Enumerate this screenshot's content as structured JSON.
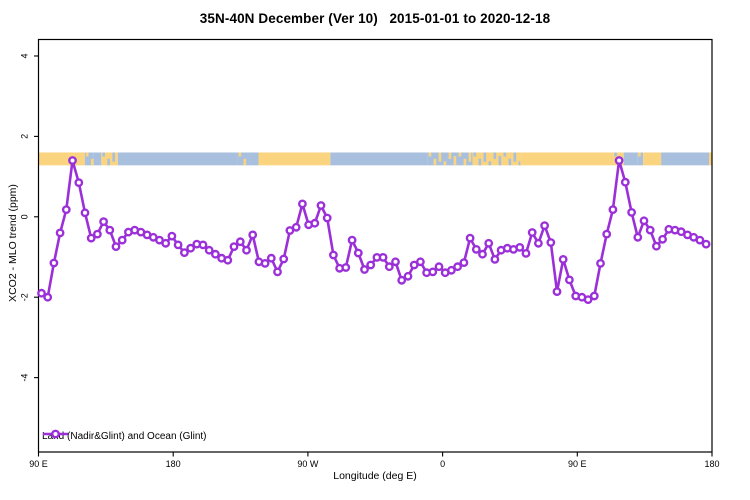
{
  "page": {
    "background": "#ffffff",
    "text_color": "#000000"
  },
  "chart_data": {
    "type": "line",
    "title": "35N-40N December (Ver 10)   2015-01-01 to 2020-12-18",
    "xlabel": "Longitude (deg E)",
    "ylabel": "XCO2 - MLO trend (ppm)",
    "xlim": [
      90,
      540
    ],
    "ylim": [
      -5.85,
      4.41
    ],
    "grid": false,
    "x_ticks": [
      {
        "value": 90,
        "label": "90 E"
      },
      {
        "value": 180,
        "label": "180"
      },
      {
        "value": 270,
        "label": "90 W"
      },
      {
        "value": 360,
        "label": "0"
      },
      {
        "value": 450,
        "label": "90 E"
      },
      {
        "value": 540,
        "label": "180"
      }
    ],
    "y_ticks": [
      {
        "value": 4,
        "label": "4"
      },
      {
        "value": 2,
        "label": "2"
      },
      {
        "value": 0,
        "label": "0"
      },
      {
        "value": -2,
        "label": "-2"
      },
      {
        "value": -4,
        "label": "-4"
      }
    ],
    "legend": {
      "label": "Land (Nadir&Glint) and Ocean (Glint)",
      "position": "bottom-left-inside",
      "marker": "open-circle-on-line"
    },
    "series": [
      {
        "name": "Land (Nadir&Glint) and Ocean (Glint)",
        "color": "#9B30D9",
        "marker": "open-circle",
        "x_start": 92,
        "x_step": 4.15,
        "values": [
          -1.9,
          -2.0,
          -1.15,
          -0.4,
          0.18,
          1.4,
          0.85,
          0.1,
          -0.53,
          -0.43,
          -0.12,
          -0.33,
          -0.74,
          -0.58,
          -0.38,
          -0.33,
          -0.38,
          -0.45,
          -0.51,
          -0.58,
          -0.66,
          -0.48,
          -0.7,
          -0.89,
          -0.78,
          -0.68,
          -0.7,
          -0.83,
          -0.93,
          -1.03,
          -1.08,
          -0.74,
          -0.62,
          -0.83,
          -0.45,
          -1.12,
          -1.16,
          -1.03,
          -1.37,
          -1.05,
          -0.34,
          -0.26,
          0.32,
          -0.2,
          -0.16,
          0.28,
          -0.03,
          -0.95,
          -1.28,
          -1.26,
          -0.58,
          -0.9,
          -1.31,
          -1.2,
          -1.01,
          -1.01,
          -1.24,
          -1.12,
          -1.58,
          -1.48,
          -1.2,
          -1.12,
          -1.39,
          -1.37,
          -1.24,
          -1.39,
          -1.33,
          -1.24,
          -1.14,
          -0.53,
          -0.81,
          -0.93,
          -0.66,
          -1.06,
          -0.83,
          -0.78,
          -0.81,
          -0.76,
          -0.91,
          -0.39,
          -0.66,
          -0.22,
          -0.64,
          -1.86,
          -1.06,
          -1.57,
          -1.97,
          -2.0,
          -2.06,
          -1.97,
          -1.16,
          -0.43,
          0.18,
          1.4,
          0.86,
          0.11,
          -0.51,
          -0.1,
          -0.33,
          -0.73,
          -0.56,
          -0.31,
          -0.33,
          -0.37,
          -0.45,
          -0.51,
          -0.58,
          -0.68
        ]
      }
    ],
    "surface_type_band": {
      "y_from": 1.28,
      "y_to": 1.6,
      "land_color": "#FAD47F",
      "ocean_color": "#A8C0DD",
      "segments": [
        {
          "from": 90,
          "to": 121,
          "type": "land"
        },
        {
          "from": 121,
          "to": 127,
          "type": "mixed",
          "bias": "ocean"
        },
        {
          "from": 127,
          "to": 132,
          "type": "ocean"
        },
        {
          "from": 132,
          "to": 143,
          "type": "mixed",
          "bias": "land"
        },
        {
          "from": 143,
          "to": 223,
          "type": "ocean"
        },
        {
          "from": 223,
          "to": 231,
          "type": "mixed",
          "bias": "ocean"
        },
        {
          "from": 231,
          "to": 237,
          "type": "ocean"
        },
        {
          "from": 237,
          "to": 285,
          "type": "land"
        },
        {
          "from": 285,
          "to": 350,
          "type": "ocean"
        },
        {
          "from": 350,
          "to": 380,
          "type": "mixed",
          "bias": "ocean"
        },
        {
          "from": 380,
          "to": 412,
          "type": "mixed",
          "bias": "land"
        },
        {
          "from": 412,
          "to": 474,
          "type": "land"
        },
        {
          "from": 474,
          "to": 481,
          "type": "mixed",
          "bias": "land"
        },
        {
          "from": 481,
          "to": 490,
          "type": "ocean"
        },
        {
          "from": 490,
          "to": 494,
          "type": "mixed",
          "bias": "ocean"
        },
        {
          "from": 494,
          "to": 506,
          "type": "land"
        },
        {
          "from": 506,
          "to": 538,
          "type": "ocean"
        },
        {
          "from": 538,
          "to": 540,
          "type": "land"
        }
      ]
    }
  }
}
